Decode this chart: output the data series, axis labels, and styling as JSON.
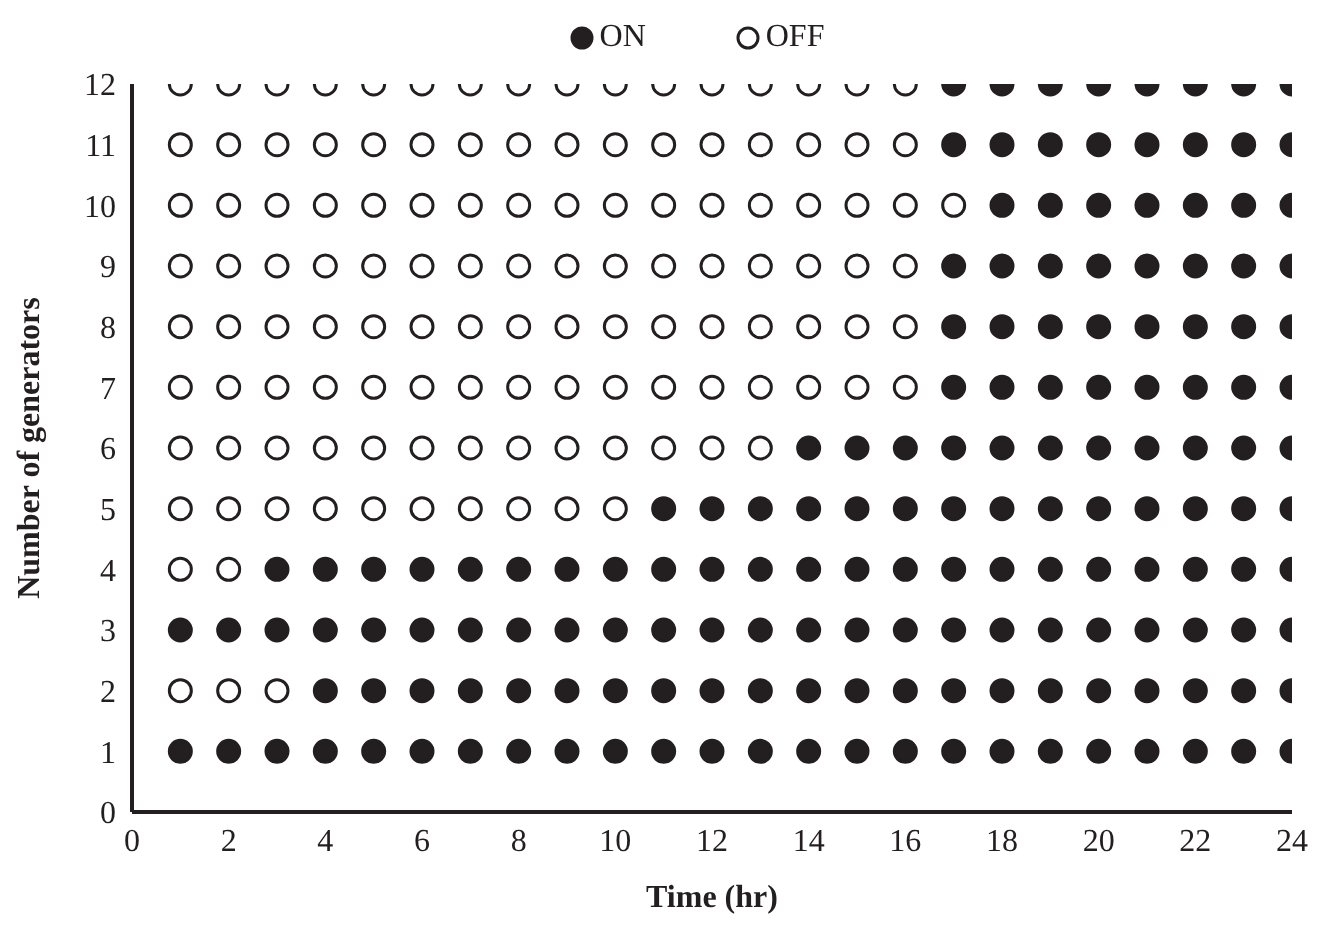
{
  "chart_data": {
    "type": "scatter",
    "xlabel": "Time (hr)",
    "ylabel": "Number of generators",
    "xlim": [
      0,
      24
    ],
    "xticks": [
      0,
      2,
      4,
      6,
      8,
      10,
      12,
      14,
      16,
      18,
      20,
      22,
      24
    ],
    "ylim": [
      0,
      12
    ],
    "yticks": [
      0,
      1,
      2,
      3,
      4,
      5,
      6,
      7,
      8,
      9,
      10,
      11,
      12
    ],
    "grid": false,
    "legend": "top",
    "marker": "circle",
    "series": [
      {
        "name": "ON",
        "color": "#231f20",
        "x": [
          1,
          2,
          3,
          4,
          5,
          6,
          7,
          8,
          9,
          10,
          11,
          12,
          13,
          14,
          15,
          16,
          17,
          18,
          19,
          20,
          21,
          22,
          23,
          24,
          4,
          5,
          6,
          7,
          8,
          9,
          10,
          11,
          12,
          13,
          14,
          15,
          16,
          17,
          18,
          19,
          20,
          21,
          22,
          23,
          24,
          1,
          2,
          3,
          4,
          5,
          6,
          7,
          8,
          9,
          10,
          11,
          12,
          13,
          14,
          15,
          16,
          17,
          18,
          19,
          20,
          21,
          22,
          23,
          24,
          3,
          4,
          5,
          6,
          7,
          8,
          9,
          10,
          11,
          12,
          13,
          14,
          15,
          16,
          17,
          18,
          19,
          20,
          21,
          22,
          23,
          24,
          11,
          12,
          13,
          14,
          15,
          16,
          17,
          18,
          19,
          20,
          21,
          22,
          23,
          24,
          14,
          15,
          16,
          17,
          18,
          19,
          20,
          21,
          22,
          23,
          24,
          17,
          18,
          19,
          20,
          21,
          22,
          23,
          24,
          17,
          18,
          19,
          20,
          21,
          22,
          23,
          24,
          17,
          18,
          19,
          20,
          21,
          22,
          23,
          24,
          18,
          19,
          20,
          21,
          22,
          23,
          24,
          17,
          18,
          19,
          20,
          21,
          22,
          23,
          24,
          17,
          18,
          19,
          20,
          21,
          22,
          23,
          24
        ],
        "values": [
          1,
          1,
          1,
          1,
          1,
          1,
          1,
          1,
          1,
          1,
          1,
          1,
          1,
          1,
          1,
          1,
          1,
          1,
          1,
          1,
          1,
          1,
          1,
          1,
          2,
          2,
          2,
          2,
          2,
          2,
          2,
          2,
          2,
          2,
          2,
          2,
          2,
          2,
          2,
          2,
          2,
          2,
          2,
          2,
          2,
          3,
          3,
          3,
          3,
          3,
          3,
          3,
          3,
          3,
          3,
          3,
          3,
          3,
          3,
          3,
          3,
          3,
          3,
          3,
          3,
          3,
          3,
          3,
          3,
          4,
          4,
          4,
          4,
          4,
          4,
          4,
          4,
          4,
          4,
          4,
          4,
          4,
          4,
          4,
          4,
          4,
          4,
          4,
          4,
          4,
          4,
          5,
          5,
          5,
          5,
          5,
          5,
          5,
          5,
          5,
          5,
          5,
          5,
          5,
          5,
          6,
          6,
          6,
          6,
          6,
          6,
          6,
          6,
          6,
          6,
          6,
          7,
          7,
          7,
          7,
          7,
          7,
          7,
          7,
          8,
          8,
          8,
          8,
          8,
          8,
          8,
          8,
          9,
          9,
          9,
          9,
          9,
          9,
          9,
          9,
          10,
          10,
          10,
          10,
          10,
          10,
          10,
          11,
          11,
          11,
          11,
          11,
          11,
          11,
          11,
          12,
          12,
          12,
          12,
          12,
          12,
          12,
          12
        ]
      },
      {
        "name": "OFF",
        "color": "#ffffff",
        "x": [
          1,
          2,
          3,
          1,
          2,
          1,
          2,
          3,
          4,
          5,
          6,
          7,
          8,
          9,
          10,
          1,
          2,
          3,
          4,
          5,
          6,
          7,
          8,
          9,
          10,
          11,
          12,
          13,
          1,
          2,
          3,
          4,
          5,
          6,
          7,
          8,
          9,
          10,
          11,
          12,
          13,
          14,
          15,
          16,
          1,
          2,
          3,
          4,
          5,
          6,
          7,
          8,
          9,
          10,
          11,
          12,
          13,
          14,
          15,
          16,
          1,
          2,
          3,
          4,
          5,
          6,
          7,
          8,
          9,
          10,
          11,
          12,
          13,
          14,
          15,
          16,
          1,
          2,
          3,
          4,
          5,
          6,
          7,
          8,
          9,
          10,
          11,
          12,
          13,
          14,
          15,
          16,
          17,
          1,
          2,
          3,
          4,
          5,
          6,
          7,
          8,
          9,
          10,
          11,
          12,
          13,
          14,
          15,
          16,
          1,
          2,
          3,
          4,
          5,
          6,
          7,
          8,
          9,
          10,
          11,
          12,
          13,
          14,
          15,
          16
        ],
        "values": [
          2,
          2,
          2,
          4,
          4,
          5,
          5,
          5,
          5,
          5,
          5,
          5,
          5,
          5,
          5,
          6,
          6,
          6,
          6,
          6,
          6,
          6,
          6,
          6,
          6,
          6,
          6,
          6,
          7,
          7,
          7,
          7,
          7,
          7,
          7,
          7,
          7,
          7,
          7,
          7,
          7,
          7,
          7,
          7,
          8,
          8,
          8,
          8,
          8,
          8,
          8,
          8,
          8,
          8,
          8,
          8,
          8,
          8,
          8,
          8,
          9,
          9,
          9,
          9,
          9,
          9,
          9,
          9,
          9,
          9,
          9,
          9,
          9,
          9,
          9,
          9,
          10,
          10,
          10,
          10,
          10,
          10,
          10,
          10,
          10,
          10,
          10,
          10,
          10,
          10,
          10,
          10,
          10,
          11,
          11,
          11,
          11,
          11,
          11,
          11,
          11,
          11,
          11,
          11,
          11,
          11,
          11,
          11,
          11,
          12,
          12,
          12,
          12,
          12,
          12,
          12,
          12,
          12,
          12,
          12,
          12,
          12,
          12,
          12,
          12
        ]
      }
    ]
  }
}
